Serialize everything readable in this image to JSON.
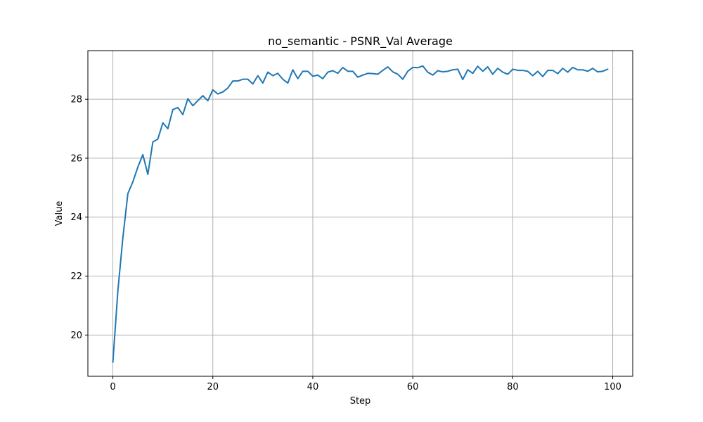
{
  "chart_data": {
    "type": "line",
    "title": "no_semantic - PSNR_Val Average",
    "xlabel": "Step",
    "ylabel": "Value",
    "xlim": [
      -5,
      104
    ],
    "ylim": [
      18.6,
      29.65
    ],
    "xticks": [
      0,
      20,
      40,
      60,
      80,
      100
    ],
    "yticks": [
      20,
      22,
      24,
      26,
      28
    ],
    "grid": true,
    "line_color": "#1f77b4",
    "series": [
      {
        "x": [
          0,
          1,
          2,
          3,
          4,
          5,
          6,
          7,
          8,
          9,
          10,
          11,
          12,
          13,
          14,
          15,
          16,
          17,
          18,
          19,
          20,
          21,
          22,
          23,
          24,
          25,
          26,
          27,
          28,
          29,
          30,
          31,
          32,
          33,
          34,
          35,
          36,
          37,
          38,
          39,
          40,
          41,
          42,
          43,
          44,
          45,
          46,
          47,
          48,
          49,
          50,
          51,
          52,
          53,
          54,
          55,
          56,
          57,
          58,
          59,
          60,
          61,
          62,
          63,
          64,
          65,
          66,
          67,
          68,
          69,
          70,
          71,
          72,
          73,
          74,
          75,
          76,
          77,
          78,
          79,
          80,
          81,
          82,
          83,
          84,
          85,
          86,
          87,
          88,
          89,
          90,
          91,
          92,
          93,
          94,
          95,
          96,
          97,
          98,
          99
        ],
        "values": [
          19.08,
          21.5,
          23.3,
          24.8,
          25.2,
          25.7,
          26.12,
          25.45,
          26.55,
          26.65,
          27.2,
          27.0,
          27.65,
          27.72,
          27.48,
          28.02,
          27.78,
          27.95,
          28.12,
          27.95,
          28.32,
          28.18,
          28.25,
          28.38,
          28.62,
          28.62,
          28.68,
          28.68,
          28.52,
          28.8,
          28.55,
          28.92,
          28.8,
          28.88,
          28.68,
          28.55,
          29.0,
          28.7,
          28.95,
          28.95,
          28.78,
          28.82,
          28.7,
          28.92,
          28.97,
          28.88,
          29.08,
          28.95,
          28.95,
          28.75,
          28.82,
          28.88,
          28.87,
          28.85,
          28.98,
          29.1,
          28.93,
          28.85,
          28.68,
          28.95,
          29.08,
          29.07,
          29.13,
          28.92,
          28.82,
          28.97,
          28.93,
          28.95,
          29.0,
          29.02,
          28.67,
          29.0,
          28.88,
          29.12,
          28.95,
          29.1,
          28.85,
          29.05,
          28.92,
          28.85,
          29.02,
          28.98,
          28.98,
          28.95,
          28.8,
          28.95,
          28.77,
          28.98,
          28.98,
          28.87,
          29.05,
          28.92,
          29.08,
          29.0,
          29.0,
          28.95,
          29.05,
          28.93,
          28.95,
          29.02
        ]
      }
    ]
  }
}
